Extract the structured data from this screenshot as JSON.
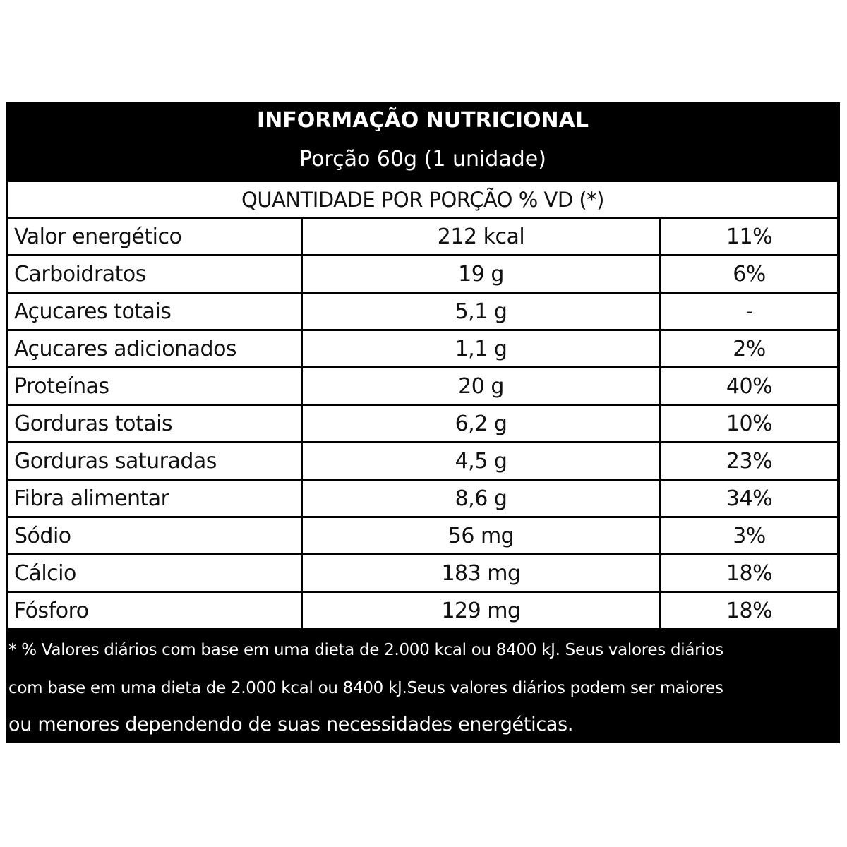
{
  "header": {
    "title": "INFORMAÇÃO NUTRICIONAL",
    "subtitle": "Porção 60g (1 unidade)"
  },
  "table": {
    "header": "QUANTIDADE POR PORÇÃO % VD (*)",
    "rows": [
      [
        "Valor energético",
        "212 kcal",
        "11%"
      ],
      [
        "Carboidratos",
        "19 g",
        "6%"
      ],
      [
        "Açucares totais",
        "5,1 g",
        "-"
      ],
      [
        "Açucares adicionados",
        "1,1 g",
        "2%"
      ],
      [
        "Proteínas",
        "20 g",
        "40%"
      ],
      [
        "Gorduras totais",
        "6,2 g",
        "10%"
      ],
      [
        "Gorduras saturadas",
        "4,5 g",
        "23%"
      ],
      [
        "Fibra alimentar",
        "8,6 g",
        "34%"
      ],
      [
        "Sódio",
        "56 mg",
        "3%"
      ],
      [
        "Cálcio",
        "183 mg",
        "18%"
      ],
      [
        "Fósforo",
        "129 mg",
        "18%"
      ]
    ]
  },
  "footer": {
    "lines": [
      "* % Valores diários com base em uma dieta de 2.000 kcal ou 8400 kJ. Seus valores diários",
      "com base em uma dieta de 2.000 kcal ou 8400 kJ.Seus valores diários podem ser maiores",
      "ou menores dependendo de suas necessidades energéticas."
    ]
  }
}
